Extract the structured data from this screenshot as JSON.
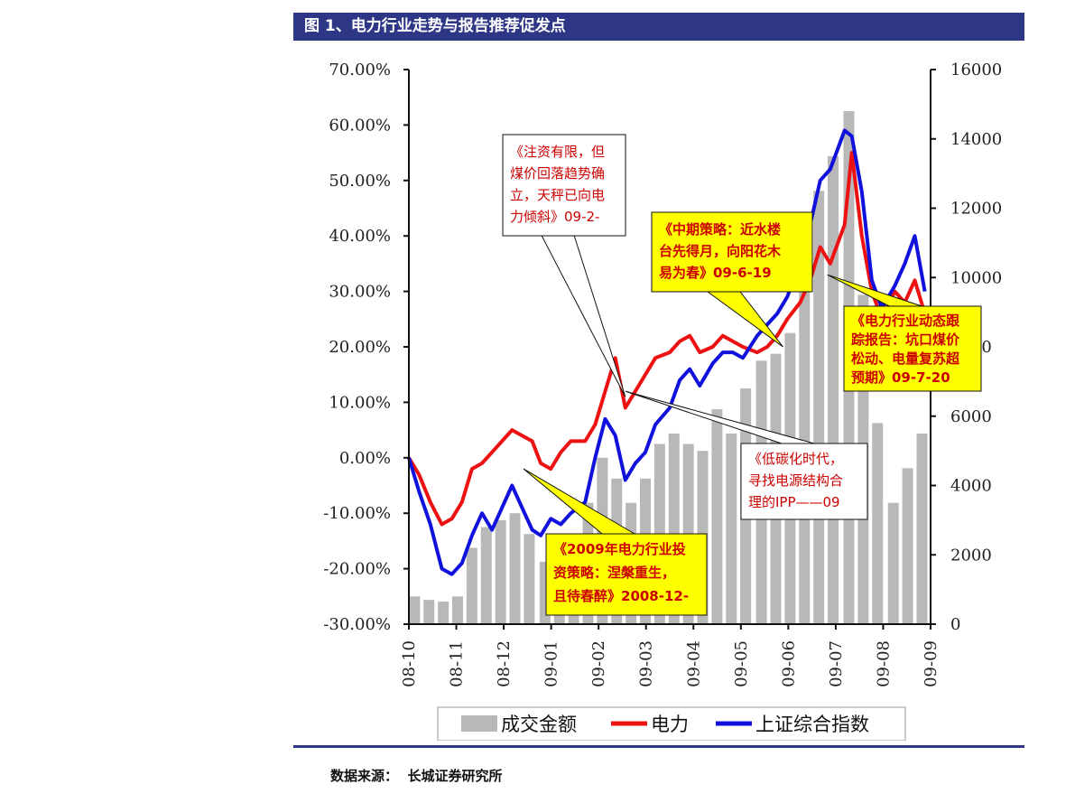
{
  "header": {
    "title": "图 1、电力行业走势与报告推荐促发点"
  },
  "footer": {
    "source": "数据来源：  长城证券研究所"
  },
  "colors": {
    "title_bg": "#2e3686",
    "electricity": "#ee1111",
    "index": "#1111dd",
    "volume": "#b8b8b8",
    "callout_yellow": "#ffff00",
    "callout_text": "#cc0000"
  },
  "chart_data": {
    "type": "line",
    "title": "",
    "x_ticks": [
      "08-10",
      "08-11",
      "08-12",
      "09-01",
      "09-02",
      "09-03",
      "09-04",
      "09-05",
      "09-06",
      "09-07",
      "09-08",
      "09-09"
    ],
    "x_range": [
      "2008-10-01",
      "2009-09-30"
    ],
    "y_left": {
      "ticks": [
        "70.00%",
        "60.00%",
        "50.00%",
        "40.00%",
        "30.00%",
        "20.00%",
        "10.00%",
        "0.00%",
        "-10.00%",
        "-20.00%",
        "-30.00%"
      ],
      "range": [
        -30,
        70
      ]
    },
    "y_right": {
      "ticks": [
        "16000",
        "14000",
        "12000",
        "10000",
        "8000",
        "6000",
        "4000",
        "2000",
        "0"
      ],
      "range": [
        0,
        16000
      ]
    },
    "legend": [
      {
        "name": "成交金额",
        "style": "bar",
        "color": "#b8b8b8"
      },
      {
        "name": "电力",
        "style": "line",
        "color": "#ee1111"
      },
      {
        "name": "上证综合指数",
        "style": "line",
        "color": "#1111dd"
      }
    ],
    "series": [
      {
        "name": "电力",
        "axis": "left",
        "unit": "%",
        "points": [
          [
            "2008-10-01",
            0
          ],
          [
            "2008-10-08",
            -3
          ],
          [
            "2008-10-16",
            -8
          ],
          [
            "2008-10-24",
            -12
          ],
          [
            "2008-10-31",
            -11
          ],
          [
            "2008-11-07",
            -8
          ],
          [
            "2008-11-14",
            -2
          ],
          [
            "2008-11-21",
            -1
          ],
          [
            "2008-11-28",
            1
          ],
          [
            "2008-12-05",
            3
          ],
          [
            "2008-12-12",
            5
          ],
          [
            "2008-12-19",
            4
          ],
          [
            "2008-12-26",
            3
          ],
          [
            "2009-01-01",
            -1
          ],
          [
            "2009-01-08",
            -2
          ],
          [
            "2009-01-15",
            1
          ],
          [
            "2009-01-22",
            3
          ],
          [
            "2009-02-01",
            3
          ],
          [
            "2009-02-08",
            6
          ],
          [
            "2009-02-15",
            12
          ],
          [
            "2009-02-22",
            18
          ],
          [
            "2009-03-01",
            9
          ],
          [
            "2009-03-08",
            12
          ],
          [
            "2009-03-15",
            15
          ],
          [
            "2009-03-22",
            18
          ],
          [
            "2009-04-01",
            19
          ],
          [
            "2009-04-08",
            21
          ],
          [
            "2009-04-15",
            22
          ],
          [
            "2009-04-22",
            19
          ],
          [
            "2009-05-01",
            20
          ],
          [
            "2009-05-08",
            22
          ],
          [
            "2009-05-15",
            21
          ],
          [
            "2009-05-22",
            20
          ],
          [
            "2009-06-01",
            19
          ],
          [
            "2009-06-08",
            20
          ],
          [
            "2009-06-15",
            22
          ],
          [
            "2009-06-22",
            25
          ],
          [
            "2009-07-01",
            28
          ],
          [
            "2009-07-08",
            32
          ],
          [
            "2009-07-15",
            38
          ],
          [
            "2009-07-22",
            35
          ],
          [
            "2009-08-01",
            42
          ],
          [
            "2009-08-06",
            55
          ],
          [
            "2009-08-13",
            40
          ],
          [
            "2009-08-20",
            30
          ],
          [
            "2009-08-27",
            25
          ],
          [
            "2009-09-05",
            30
          ],
          [
            "2009-09-12",
            28
          ],
          [
            "2009-09-19",
            32
          ],
          [
            "2009-09-26",
            26
          ]
        ]
      },
      {
        "name": "上证综合指数",
        "axis": "left",
        "unit": "%",
        "points": [
          [
            "2008-10-01",
            0
          ],
          [
            "2008-10-08",
            -6
          ],
          [
            "2008-10-16",
            -12
          ],
          [
            "2008-10-24",
            -20
          ],
          [
            "2008-10-31",
            -21
          ],
          [
            "2008-11-07",
            -19
          ],
          [
            "2008-11-14",
            -14
          ],
          [
            "2008-11-21",
            -10
          ],
          [
            "2008-11-28",
            -13
          ],
          [
            "2008-12-05",
            -9
          ],
          [
            "2008-12-12",
            -5
          ],
          [
            "2008-12-19",
            -9
          ],
          [
            "2008-12-26",
            -13
          ],
          [
            "2009-01-01",
            -14
          ],
          [
            "2009-01-08",
            -11
          ],
          [
            "2009-01-15",
            -12
          ],
          [
            "2009-01-22",
            -10
          ],
          [
            "2009-02-01",
            -8
          ],
          [
            "2009-02-08",
            0
          ],
          [
            "2009-02-15",
            7
          ],
          [
            "2009-02-22",
            4
          ],
          [
            "2009-03-01",
            -4
          ],
          [
            "2009-03-08",
            -1
          ],
          [
            "2009-03-15",
            1
          ],
          [
            "2009-03-22",
            6
          ],
          [
            "2009-04-01",
            9
          ],
          [
            "2009-04-08",
            14
          ],
          [
            "2009-04-15",
            16
          ],
          [
            "2009-04-22",
            13
          ],
          [
            "2009-05-01",
            17
          ],
          [
            "2009-05-08",
            19
          ],
          [
            "2009-05-15",
            19
          ],
          [
            "2009-05-22",
            18
          ],
          [
            "2009-06-01",
            22
          ],
          [
            "2009-06-08",
            24
          ],
          [
            "2009-06-15",
            26
          ],
          [
            "2009-06-22",
            29
          ],
          [
            "2009-07-01",
            35
          ],
          [
            "2009-07-08",
            42
          ],
          [
            "2009-07-15",
            50
          ],
          [
            "2009-07-22",
            52
          ],
          [
            "2009-08-01",
            59
          ],
          [
            "2009-08-06",
            58
          ],
          [
            "2009-08-13",
            48
          ],
          [
            "2009-08-20",
            32
          ],
          [
            "2009-08-27",
            27
          ],
          [
            "2009-09-05",
            31
          ],
          [
            "2009-09-12",
            35
          ],
          [
            "2009-09-19",
            40
          ],
          [
            "2009-09-26",
            30
          ]
        ]
      },
      {
        "name": "成交金额",
        "axis": "right",
        "unit": "",
        "points": [
          [
            "2008-10-05",
            800
          ],
          [
            "2008-10-15",
            700
          ],
          [
            "2008-10-25",
            650
          ],
          [
            "2008-11-04",
            800
          ],
          [
            "2008-11-14",
            2200
          ],
          [
            "2008-11-24",
            2800
          ],
          [
            "2008-12-04",
            3000
          ],
          [
            "2008-12-14",
            3200
          ],
          [
            "2008-12-24",
            2600
          ],
          [
            "2009-01-04",
            1800
          ],
          [
            "2009-01-14",
            2400
          ],
          [
            "2009-01-24",
            1400
          ],
          [
            "2009-02-03",
            3500
          ],
          [
            "2009-02-13",
            4800
          ],
          [
            "2009-02-23",
            4200
          ],
          [
            "2009-03-05",
            3500
          ],
          [
            "2009-03-15",
            4200
          ],
          [
            "2009-03-25",
            5200
          ],
          [
            "2009-04-04",
            5500
          ],
          [
            "2009-04-14",
            5200
          ],
          [
            "2009-04-24",
            5000
          ],
          [
            "2009-05-04",
            6200
          ],
          [
            "2009-05-14",
            5500
          ],
          [
            "2009-05-24",
            6800
          ],
          [
            "2009-06-04",
            7600
          ],
          [
            "2009-06-14",
            7800
          ],
          [
            "2009-06-24",
            8400
          ],
          [
            "2009-07-04",
            10500
          ],
          [
            "2009-07-14",
            12500
          ],
          [
            "2009-07-24",
            13500
          ],
          [
            "2009-08-04",
            14800
          ],
          [
            "2009-08-14",
            9500
          ],
          [
            "2009-08-24",
            5800
          ],
          [
            "2009-09-04",
            3500
          ],
          [
            "2009-09-14",
            4500
          ],
          [
            "2009-09-24",
            5500
          ]
        ]
      }
    ],
    "annotations": [
      {
        "text_lines": [
          "《注资有限，但",
          "煤价回落趋势确",
          "立，天秤已向电",
          "力倾斜》09-2-"
        ],
        "style": "white",
        "target": [
          "2009-03-01",
          11
        ]
      },
      {
        "text_lines": [
          "《中期策略：近水楼",
          "台先得月，向阳花木",
          "易为春》09-6-19"
        ],
        "style": "yellow",
        "target": [
          "2009-06-19",
          20
        ]
      },
      {
        "text_lines": [
          "《电力行业动态跟",
          "踪报告：坑口煤价",
          "松动、电量复苏超",
          "预期》09-7-20"
        ],
        "style": "yellow",
        "target": [
          "2009-07-20",
          33
        ]
      },
      {
        "text_lines": [
          "《低碳化时代，",
          "寻找电源结构合",
          "理的IPP——09"
        ],
        "style": "white",
        "target": [
          "2009-03-01",
          12
        ]
      },
      {
        "text_lines": [
          "《2009年电力行业投",
          "资策略：涅槃重生，",
          "且待春醉》2008-12-"
        ],
        "style": "yellow",
        "target": [
          "2008-12-20",
          -2
        ]
      }
    ]
  }
}
